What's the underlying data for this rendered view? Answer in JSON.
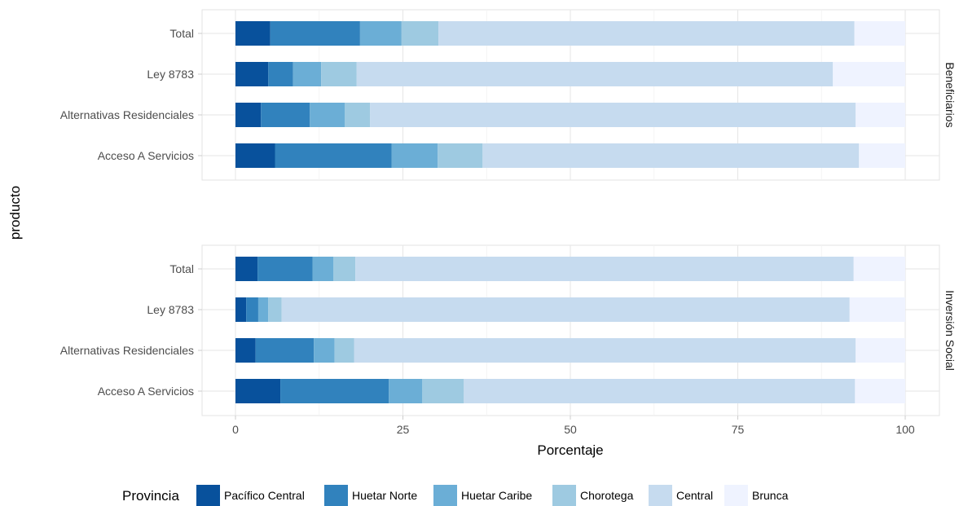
{
  "chart_data": {
    "type": "bar",
    "orientation": "horizontal",
    "stacked": true,
    "xlabel": "Porcentaje",
    "ylabel": "producto",
    "xlim": [
      0,
      100
    ],
    "xticks": [
      "0",
      "25",
      "50",
      "75",
      "100"
    ],
    "xtick_values": [
      0,
      25,
      50,
      75,
      100
    ],
    "grid": true,
    "legend": {
      "title": "Provincia",
      "position": "bottom",
      "entries": [
        "Pacífico Central",
        "Huetar Norte",
        "Huetar Caribe",
        "Chorotega",
        "Central",
        "Brunca"
      ]
    },
    "colors": {
      "Pacífico Central": "#08519c",
      "Huetar Norte": "#3182bd",
      "Huetar Caribe": "#6baed6",
      "Chorotega": "#9ecae1",
      "Central": "#c6dbef",
      "Brunca": "#eff3ff"
    },
    "categories": [
      "Total",
      "Ley 8783",
      "Alternativas Residenciales",
      "Acceso A Servicios"
    ],
    "facets": [
      {
        "strip": "Beneficiarios",
        "rows": [
          {
            "category": "Total",
            "values": [
              5.2,
              13.4,
              6.2,
              5.5,
              62.1,
              7.6
            ]
          },
          {
            "category": "Ley 8783",
            "values": [
              4.9,
              3.7,
              4.2,
              5.3,
              71.1,
              10.8
            ]
          },
          {
            "category": "Alternativas Residenciales",
            "values": [
              3.8,
              7.3,
              5.2,
              3.8,
              72.5,
              7.4
            ]
          },
          {
            "category": "Acceso A Servicios",
            "values": [
              5.9,
              17.4,
              6.9,
              6.7,
              56.2,
              6.9
            ]
          }
        ]
      },
      {
        "strip": "Inversión Social",
        "rows": [
          {
            "category": "Total",
            "values": [
              3.3,
              8.2,
              3.1,
              3.3,
              74.4,
              7.7
            ]
          },
          {
            "category": "Ley 8783",
            "values": [
              1.6,
              1.8,
              1.5,
              2.0,
              84.8,
              8.3
            ]
          },
          {
            "category": "Alternativas Residenciales",
            "values": [
              3.0,
              8.7,
              3.1,
              2.9,
              74.9,
              7.4
            ]
          },
          {
            "category": "Acceso A Servicios",
            "values": [
              6.7,
              16.2,
              5.0,
              6.2,
              58.4,
              7.5
            ]
          }
        ]
      }
    ]
  }
}
